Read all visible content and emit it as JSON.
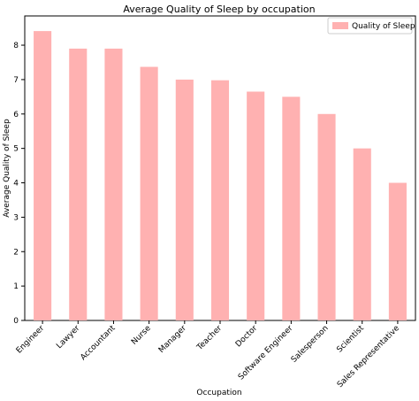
{
  "chart_data": {
    "type": "bar",
    "title": "Average Quality of Sleep by occupation",
    "xlabel": "Occupation",
    "ylabel": "Average Quality of Sleep",
    "categories": [
      "Engineer",
      "Lawyer",
      "Accountant",
      "Nurse",
      "Manager",
      "Teacher",
      "Doctor",
      "Software Engineer",
      "Salesperson",
      "Scientist",
      "Sales Representative"
    ],
    "series": [
      {
        "name": "Quality of Sleep",
        "values": [
          8.41,
          7.9,
          7.9,
          7.37,
          7.0,
          6.98,
          6.65,
          6.5,
          6.0,
          5.0,
          4.0
        ],
        "color": "#ffb1b1"
      }
    ],
    "y_ticks": [
      0,
      1,
      2,
      3,
      4,
      5,
      6,
      7,
      8
    ],
    "ylim": [
      0,
      8.85
    ],
    "grid": false,
    "legend_position": "top-right"
  }
}
